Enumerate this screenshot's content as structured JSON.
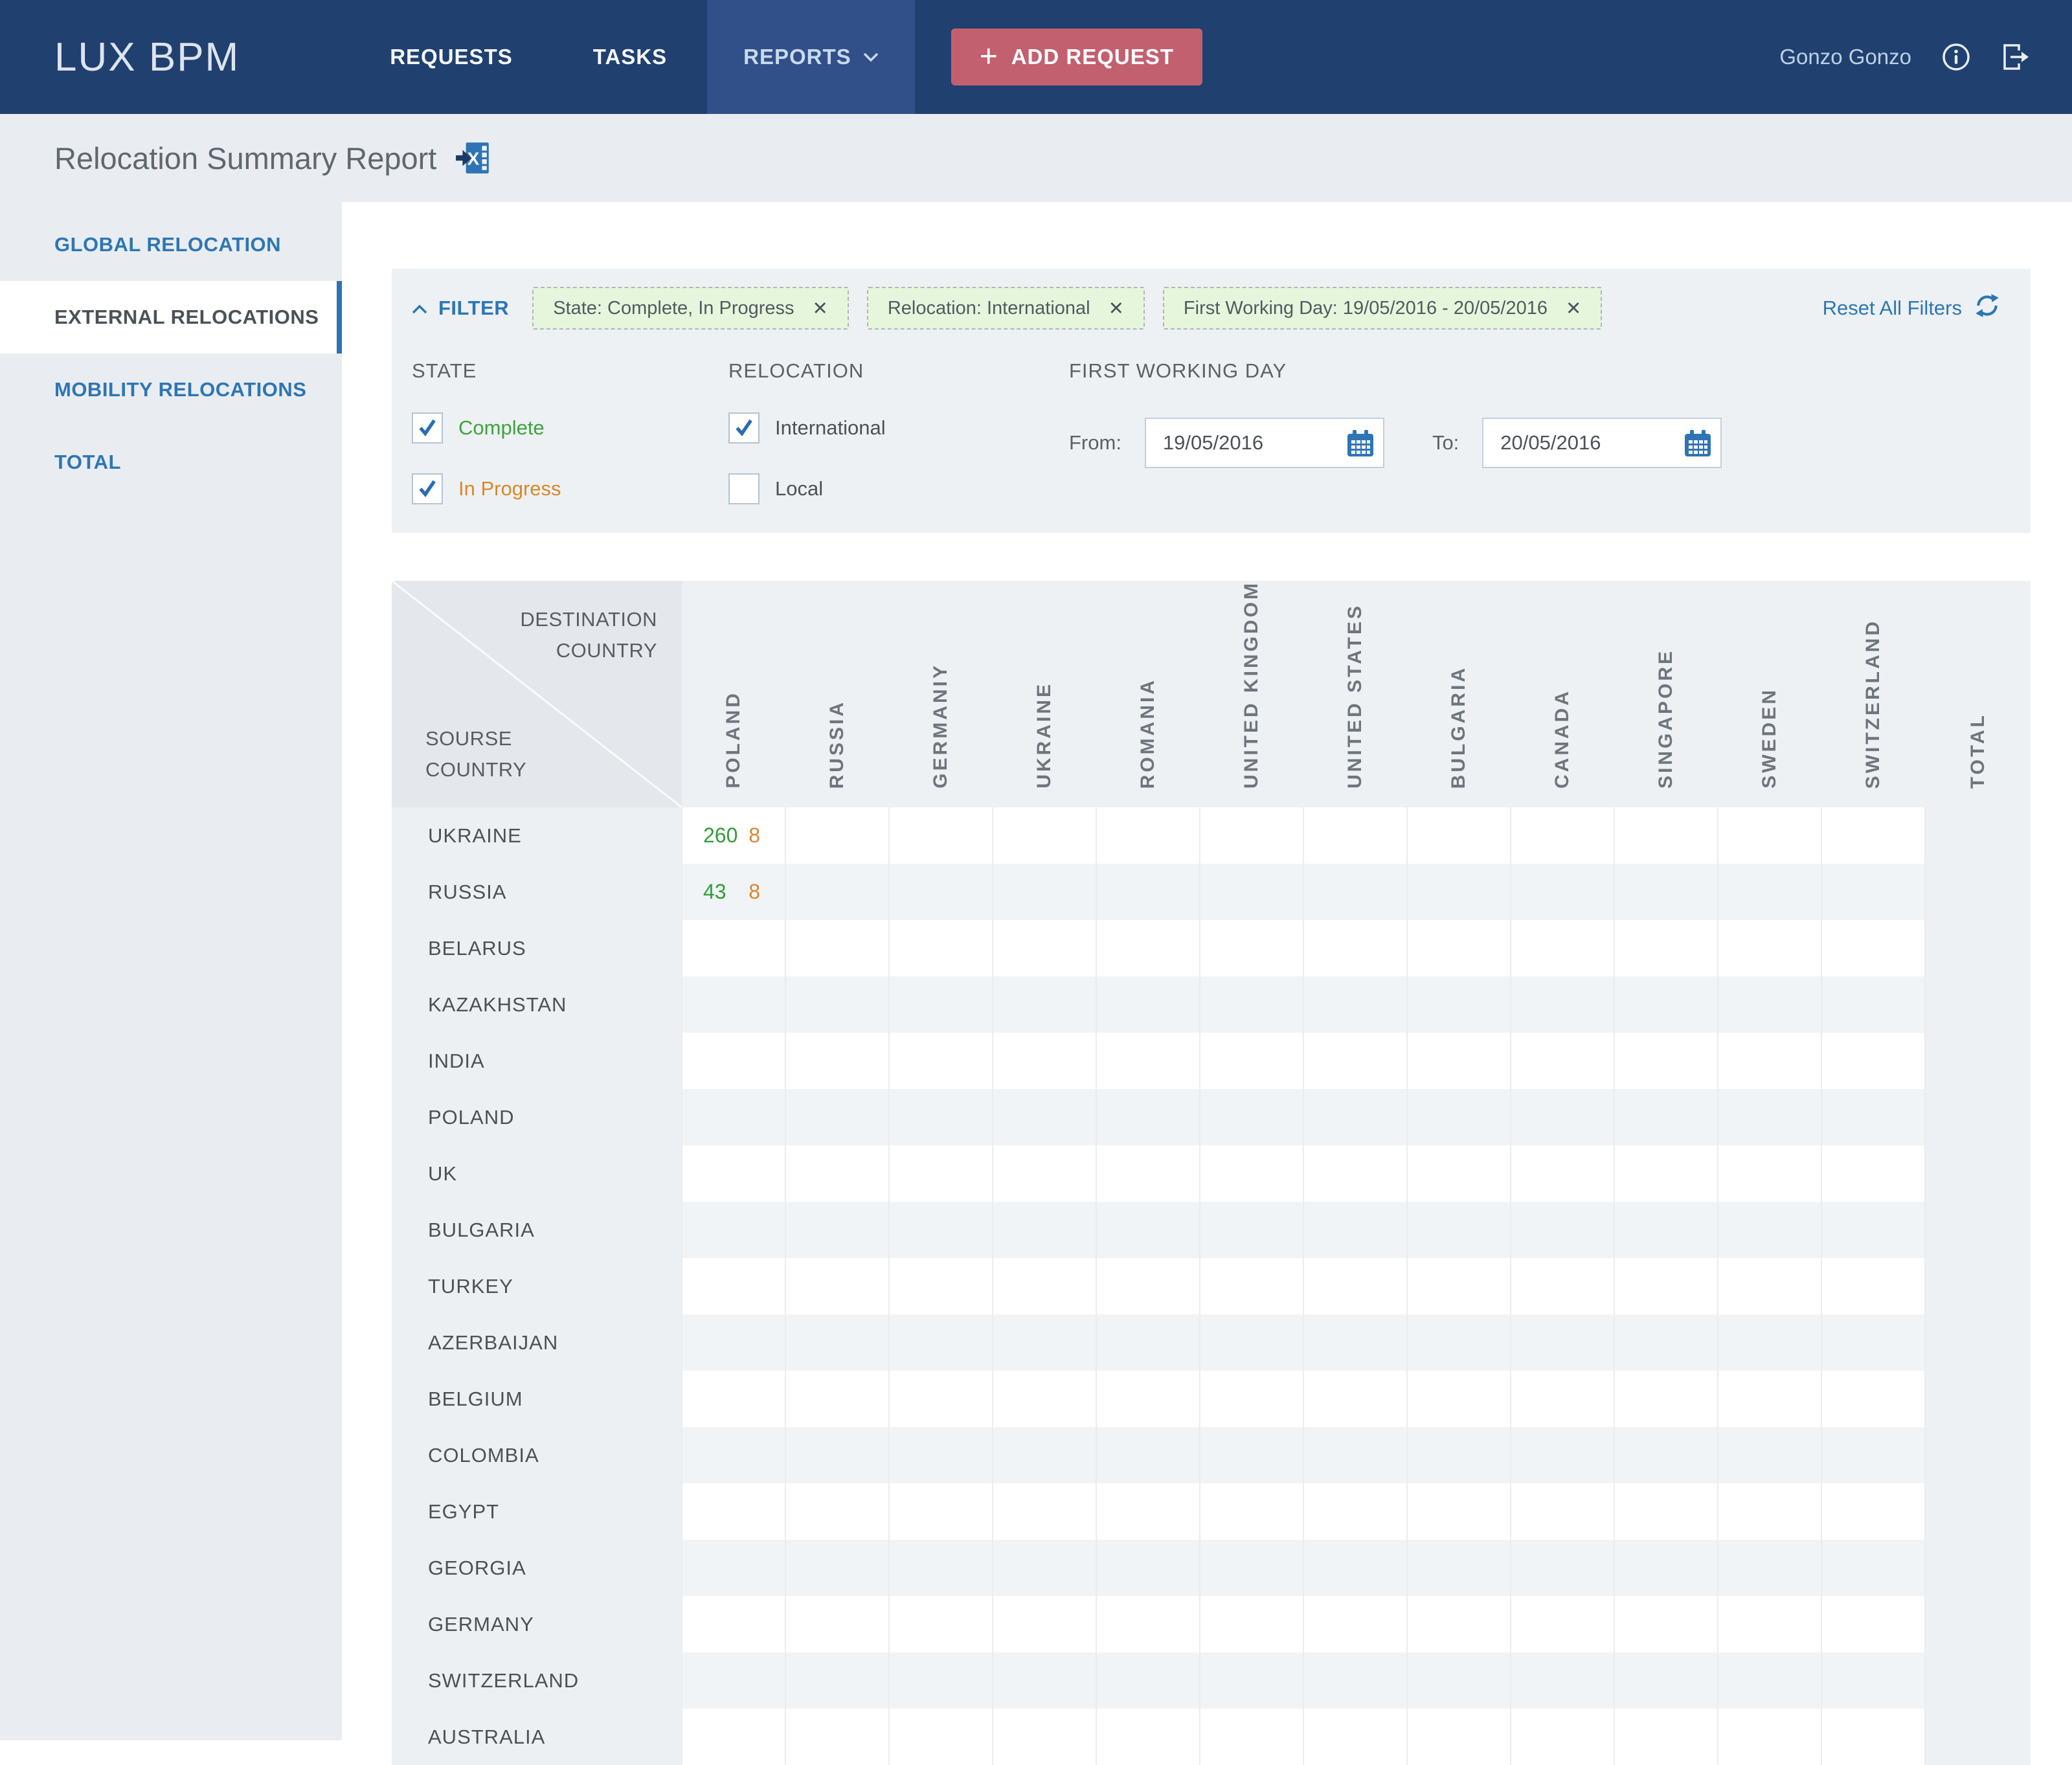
{
  "colors": {
    "nav_bg": "#20406f",
    "nav_active_bg": "#31508a",
    "add_request_bg": "#c2606f",
    "accent_blue": "#2e75b5",
    "chip_bg": "#e5f6dd",
    "complete_green": "#2f9e38",
    "in_progress_orange": "#d8882c",
    "panel_bg": "#edf1f4",
    "strip_bg": "#e9edf1",
    "stripe_row_bg": "#f1f4f7",
    "table_header_bg": "#eef1f4",
    "corner_cell_bg": "#e4e8ec",
    "label_col_bg": "#edf0f3"
  },
  "nav": {
    "brand": "LUX BPM",
    "items": [
      {
        "label": "REQUESTS",
        "active": false,
        "dropdown": false
      },
      {
        "label": "TASKS",
        "active": false,
        "dropdown": false
      },
      {
        "label": "REPORTS",
        "active": true,
        "dropdown": true
      }
    ],
    "add_request": {
      "plus": "+",
      "label": "ADD REQUEST"
    },
    "user": "Gonzo Gonzo"
  },
  "page": {
    "title": "Relocation Summary Report"
  },
  "sidebar": {
    "items": [
      {
        "label": "GLOBAL RELOCATION",
        "active": false
      },
      {
        "label": "EXTERNAL RELOCATIONS",
        "active": true
      },
      {
        "label": "MOBILITY RELOCATIONS",
        "active": false
      },
      {
        "label": "TOTAL",
        "active": false
      }
    ]
  },
  "filter": {
    "toggle_label": "FILTER",
    "chips": [
      {
        "label": "State: Complete, In Progress"
      },
      {
        "label": "Relocation: International"
      },
      {
        "label": "First Working Day: 19/05/2016 - 20/05/2016"
      }
    ],
    "reset_label": "Reset All Filters",
    "state": {
      "title": "STATE",
      "options": [
        {
          "label": "Complete",
          "checked": true,
          "label_color": "#3fa33c"
        },
        {
          "label": "In Progress",
          "checked": true,
          "label_color": "#d8882c"
        }
      ]
    },
    "relocation": {
      "title": "RELOCATION",
      "options": [
        {
          "label": "International",
          "checked": true,
          "label_color": "#4b5257"
        },
        {
          "label": "Local",
          "checked": false,
          "label_color": "#4b5257"
        }
      ]
    },
    "first_working_day": {
      "title": "FIRST WORKING DAY",
      "from_label": "From:",
      "from_value": "19/05/2016",
      "to_label": "To:",
      "to_value": "20/05/2016"
    }
  },
  "table": {
    "corner_top": "DESTINATION COUNTRY",
    "corner_bottom": "SOURSE COUNTRY",
    "columns": [
      "POLAND",
      "RUSSIA",
      "GERMANIY",
      "UKRAINE",
      "ROMANIA",
      "UNITED KINGDOM",
      "UNITED STATES",
      "BULGARIA",
      "CANADA",
      "SINGAPORE",
      "SWEDEN",
      "SWITZERLAND",
      "TOTAL"
    ],
    "rows": [
      {
        "label": "UKRAINE",
        "cells": {
          "0": {
            "complete": "260",
            "in_progress": "8"
          }
        }
      },
      {
        "label": "RUSSIA",
        "cells": {
          "0": {
            "complete": "43",
            "in_progress": "8"
          }
        }
      },
      {
        "label": "BELARUS",
        "cells": {}
      },
      {
        "label": "KAZAKHSTAN",
        "cells": {}
      },
      {
        "label": "INDIA",
        "cells": {}
      },
      {
        "label": "POLAND",
        "cells": {}
      },
      {
        "label": "UK",
        "cells": {}
      },
      {
        "label": "BULGARIA",
        "cells": {}
      },
      {
        "label": "TURKEY",
        "cells": {}
      },
      {
        "label": "AZERBAIJAN",
        "cells": {}
      },
      {
        "label": "BELGIUM",
        "cells": {}
      },
      {
        "label": "COLOMBIA",
        "cells": {}
      },
      {
        "label": "EGYPT",
        "cells": {}
      },
      {
        "label": "GEORGIA",
        "cells": {}
      },
      {
        "label": "GERMANY",
        "cells": {}
      },
      {
        "label": "SWITZERLAND",
        "cells": {}
      },
      {
        "label": "AUSTRALIA",
        "cells": {}
      }
    ]
  }
}
